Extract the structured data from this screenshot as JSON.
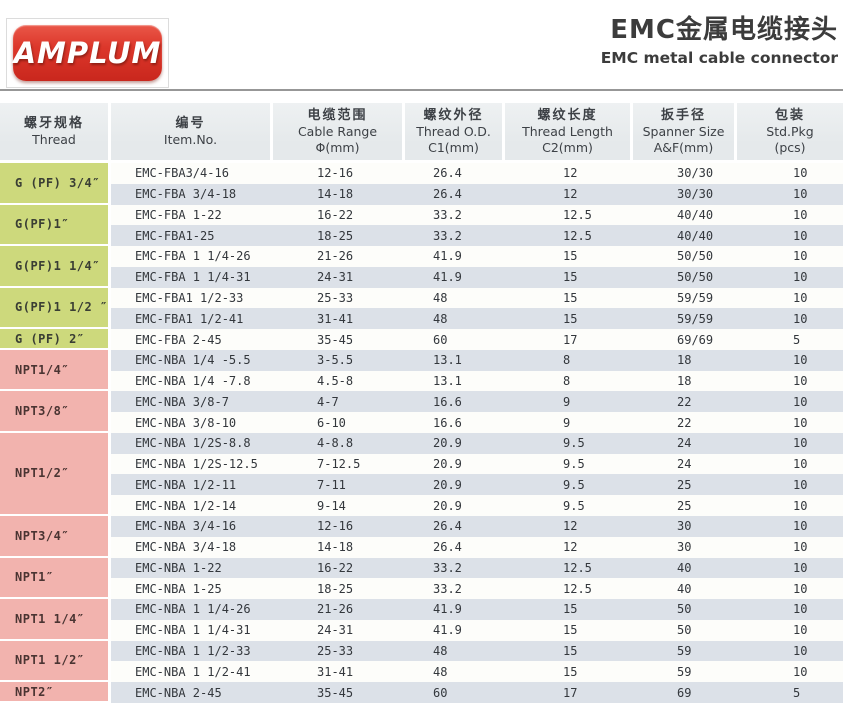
{
  "brand": {
    "logo_text": "AMPLUM"
  },
  "header": {
    "title_zh": "EMC金属电缆接头",
    "title_en": "EMC metal cable connector"
  },
  "table": {
    "columns": [
      {
        "zh": "螺牙规格",
        "en": "Thread",
        "sub": ""
      },
      {
        "zh": "编号",
        "en": "Item.No.",
        "sub": ""
      },
      {
        "zh": "电缆范围",
        "en": "Cable Range",
        "sub": "Φ(mm)"
      },
      {
        "zh": "螺纹外径",
        "en": "Thread O.D.",
        "sub": "C1(mm)"
      },
      {
        "zh": "螺纹长度",
        "en": "Thread Length",
        "sub": "C2(mm)"
      },
      {
        "zh": "扳手径",
        "en": "Spanner Size",
        "sub": "A&F(mm)"
      },
      {
        "zh": "包装",
        "en": "Std.Pkg",
        "sub": "(pcs)"
      }
    ],
    "groups": [
      {
        "thread": "G (PF) 3/4″",
        "type": "g",
        "rows": [
          {
            "item": "EMC-FBA3/4-16",
            "cable": "12-16",
            "c1": "26.4",
            "c2": "12",
            "spanner": "30/30",
            "pkg": "10"
          },
          {
            "item": "EMC-FBA 3/4-18",
            "cable": "14-18",
            "c1": "26.4",
            "c2": "12",
            "spanner": "30/30",
            "pkg": "10"
          }
        ]
      },
      {
        "thread": "G(PF)1″",
        "type": "g",
        "rows": [
          {
            "item": "EMC-FBA 1-22",
            "cable": "16-22",
            "c1": "33.2",
            "c2": "12.5",
            "spanner": "40/40",
            "pkg": "10"
          },
          {
            "item": "EMC-FBA1-25",
            "cable": "18-25",
            "c1": "33.2",
            "c2": "12.5",
            "spanner": "40/40",
            "pkg": "10"
          }
        ]
      },
      {
        "thread": "G(PF)1 1/4″",
        "type": "g",
        "rows": [
          {
            "item": "EMC-FBA 1 1/4-26",
            "cable": "21-26",
            "c1": "41.9",
            "c2": "15",
            "spanner": "50/50",
            "pkg": "10"
          },
          {
            "item": "EMC-FBA 1 1/4-31",
            "cable": "24-31",
            "c1": "41.9",
            "c2": "15",
            "spanner": "50/50",
            "pkg": "10"
          }
        ]
      },
      {
        "thread": "G(PF)1 1/2 ″",
        "type": "g",
        "rows": [
          {
            "item": "EMC-FBA1 1/2-33",
            "cable": "25-33",
            "c1": "48",
            "c2": "15",
            "spanner": "59/59",
            "pkg": "10"
          },
          {
            "item": "EMC-FBA1 1/2-41",
            "cable": "31-41",
            "c1": "48",
            "c2": "15",
            "spanner": "59/59",
            "pkg": "10"
          }
        ]
      },
      {
        "thread": "G (PF) 2″",
        "type": "g",
        "rows": [
          {
            "item": "EMC-FBA 2-45",
            "cable": "35-45",
            "c1": "60",
            "c2": "17",
            "spanner": "69/69",
            "pkg": "5"
          }
        ]
      },
      {
        "thread": "NPT1/4″",
        "type": "npt",
        "rows": [
          {
            "item": "EMC-NBA 1/4 -5.5",
            "cable": "3-5.5",
            "c1": "13.1",
            "c2": "8",
            "spanner": "18",
            "pkg": "10"
          },
          {
            "item": "EMC-NBA 1/4 -7.8",
            "cable": "4.5-8",
            "c1": "13.1",
            "c2": "8",
            "spanner": "18",
            "pkg": "10"
          }
        ]
      },
      {
        "thread": "NPT3/8″",
        "type": "npt",
        "rows": [
          {
            "item": "EMC-NBA 3/8-7",
            "cable": "4-7",
            "c1": "16.6",
            "c2": "9",
            "spanner": "22",
            "pkg": "10"
          },
          {
            "item": "EMC-NBA 3/8-10",
            "cable": "6-10",
            "c1": "16.6",
            "c2": "9",
            "spanner": "22",
            "pkg": "10"
          }
        ]
      },
      {
        "thread": "NPT1/2″",
        "type": "npt",
        "rows": [
          {
            "item": "EMC-NBA 1/2S-8.8",
            "cable": "4-8.8",
            "c1": "20.9",
            "c2": "9.5",
            "spanner": "24",
            "pkg": "10"
          },
          {
            "item": "EMC-NBA 1/2S-12.5",
            "cable": "7-12.5",
            "c1": "20.9",
            "c2": "9.5",
            "spanner": "24",
            "pkg": "10"
          },
          {
            "item": "EMC-NBA 1/2-11",
            "cable": "7-11",
            "c1": "20.9",
            "c2": "9.5",
            "spanner": "25",
            "pkg": "10"
          },
          {
            "item": "EMC-NBA 1/2-14",
            "cable": "9-14",
            "c1": "20.9",
            "c2": "9.5",
            "spanner": "25",
            "pkg": "10"
          }
        ]
      },
      {
        "thread": "NPT3/4″",
        "type": "npt",
        "rows": [
          {
            "item": "EMC-NBA 3/4-16",
            "cable": "12-16",
            "c1": "26.4",
            "c2": "12",
            "spanner": "30",
            "pkg": "10"
          },
          {
            "item": "EMC-NBA 3/4-18",
            "cable": "14-18",
            "c1": "26.4",
            "c2": "12",
            "spanner": "30",
            "pkg": "10"
          }
        ]
      },
      {
        "thread": "NPT1″",
        "type": "npt",
        "rows": [
          {
            "item": "EMC-NBA 1-22",
            "cable": "16-22",
            "c1": "33.2",
            "c2": "12.5",
            "spanner": "40",
            "pkg": "10"
          },
          {
            "item": "EMC-NBA 1-25",
            "cable": "18-25",
            "c1": "33.2",
            "c2": "12.5",
            "spanner": "40",
            "pkg": "10"
          }
        ]
      },
      {
        "thread": "NPT1 1/4″",
        "type": "npt",
        "rows": [
          {
            "item": "EMC-NBA 1 1/4-26",
            "cable": "21-26",
            "c1": "41.9",
            "c2": "15",
            "spanner": "50",
            "pkg": "10"
          },
          {
            "item": "EMC-NBA 1 1/4-31",
            "cable": "24-31",
            "c1": "41.9",
            "c2": "15",
            "spanner": "50",
            "pkg": "10"
          }
        ]
      },
      {
        "thread": "NPT1 1/2″",
        "type": "npt",
        "rows": [
          {
            "item": "EMC-NBA 1 1/2-33",
            "cable": "25-33",
            "c1": "48",
            "c2": "15",
            "spanner": "59",
            "pkg": "10"
          },
          {
            "item": "EMC-NBA 1 1/2-41",
            "cable": "31-41",
            "c1": "48",
            "c2": "15",
            "spanner": "59",
            "pkg": "10"
          }
        ]
      },
      {
        "thread": "NPT2″",
        "type": "npt",
        "rows": [
          {
            "item": "EMC-NBA 2-45",
            "cable": "35-45",
            "c1": "60",
            "c2": "17",
            "spanner": "69",
            "pkg": "5"
          }
        ]
      }
    ]
  },
  "colors": {
    "thread_g_bg": "#cdd97c",
    "thread_npt_bg": "#f2b3ae",
    "stripe_bg": "#dce1e8",
    "row_bg": "#fdfdfa",
    "header_bg": "#e5e9eb",
    "brand_red": "#d92f24",
    "divider_gray": "#979797",
    "text_dark": "#3a3e42"
  }
}
